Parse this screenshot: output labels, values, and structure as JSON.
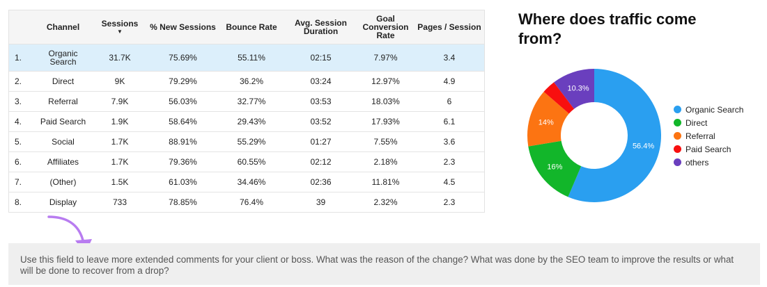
{
  "table": {
    "headers": {
      "rank": "",
      "channel": "Channel",
      "sessions": "Sessions",
      "sort_indicator": "▼",
      "new_sessions": "% New Sessions",
      "bounce_rate": "Bounce Rate",
      "avg_duration": "Avg. Session Duration",
      "goal_conversion": "Goal Conversion Rate",
      "pages_per_session": "Pages / Session"
    },
    "rows": [
      {
        "rank": "1.",
        "channel": "Organic Search",
        "sessions": "31.7K",
        "new_sessions": "75.69%",
        "bounce_rate": "55.11%",
        "avg_duration": "02:15",
        "goal_conversion": "7.97%",
        "pages_per_session": "3.4"
      },
      {
        "rank": "2.",
        "channel": "Direct",
        "sessions": "9K",
        "new_sessions": "79.29%",
        "bounce_rate": "36.2%",
        "avg_duration": "03:24",
        "goal_conversion": "12.97%",
        "pages_per_session": "4.9"
      },
      {
        "rank": "3.",
        "channel": "Referral",
        "sessions": "7.9K",
        "new_sessions": "56.03%",
        "bounce_rate": "32.77%",
        "avg_duration": "03:53",
        "goal_conversion": "18.03%",
        "pages_per_session": "6"
      },
      {
        "rank": "4.",
        "channel": "Paid Search",
        "sessions": "1.9K",
        "new_sessions": "58.64%",
        "bounce_rate": "29.43%",
        "avg_duration": "03:52",
        "goal_conversion": "17.93%",
        "pages_per_session": "6.1"
      },
      {
        "rank": "5.",
        "channel": "Social",
        "sessions": "1.7K",
        "new_sessions": "88.91%",
        "bounce_rate": "55.29%",
        "avg_duration": "01:27",
        "goal_conversion": "7.55%",
        "pages_per_session": "3.6"
      },
      {
        "rank": "6.",
        "channel": "Affiliates",
        "sessions": "1.7K",
        "new_sessions": "79.36%",
        "bounce_rate": "60.55%",
        "avg_duration": "02:12",
        "goal_conversion": "2.18%",
        "pages_per_session": "2.3"
      },
      {
        "rank": "7.",
        "channel": "(Other)",
        "sessions": "1.5K",
        "new_sessions": "61.03%",
        "bounce_rate": "34.46%",
        "avg_duration": "02:36",
        "goal_conversion": "11.81%",
        "pages_per_session": "4.5"
      },
      {
        "rank": "8.",
        "channel": "Display",
        "sessions": "733",
        "new_sessions": "78.85%",
        "bounce_rate": "76.4%",
        "avg_duration": "39",
        "goal_conversion": "2.32%",
        "pages_per_session": "2.3"
      }
    ]
  },
  "chart_data": {
    "type": "pie",
    "title": "Where does traffic come from?",
    "categories": [
      "Organic Search",
      "Direct",
      "Referral",
      "Paid Search",
      "others"
    ],
    "values": [
      56.4,
      16,
      14,
      3.3,
      10.3
    ],
    "labels": [
      "56.4%",
      "16%",
      "14%",
      "",
      "10.3%"
    ],
    "colors": [
      "#2a9ff0",
      "#12b62a",
      "#fc7412",
      "#f80f0f",
      "#6a3fbe"
    ],
    "donut": true,
    "legend_position": "right"
  },
  "comment": {
    "text": "Use this field to leave more extended comments for your client or boss. What was the reason of the change? What was done by the SEO team to improve the results or what will be done to recover from a drop?",
    "arrow_color": "#b87cf0"
  }
}
